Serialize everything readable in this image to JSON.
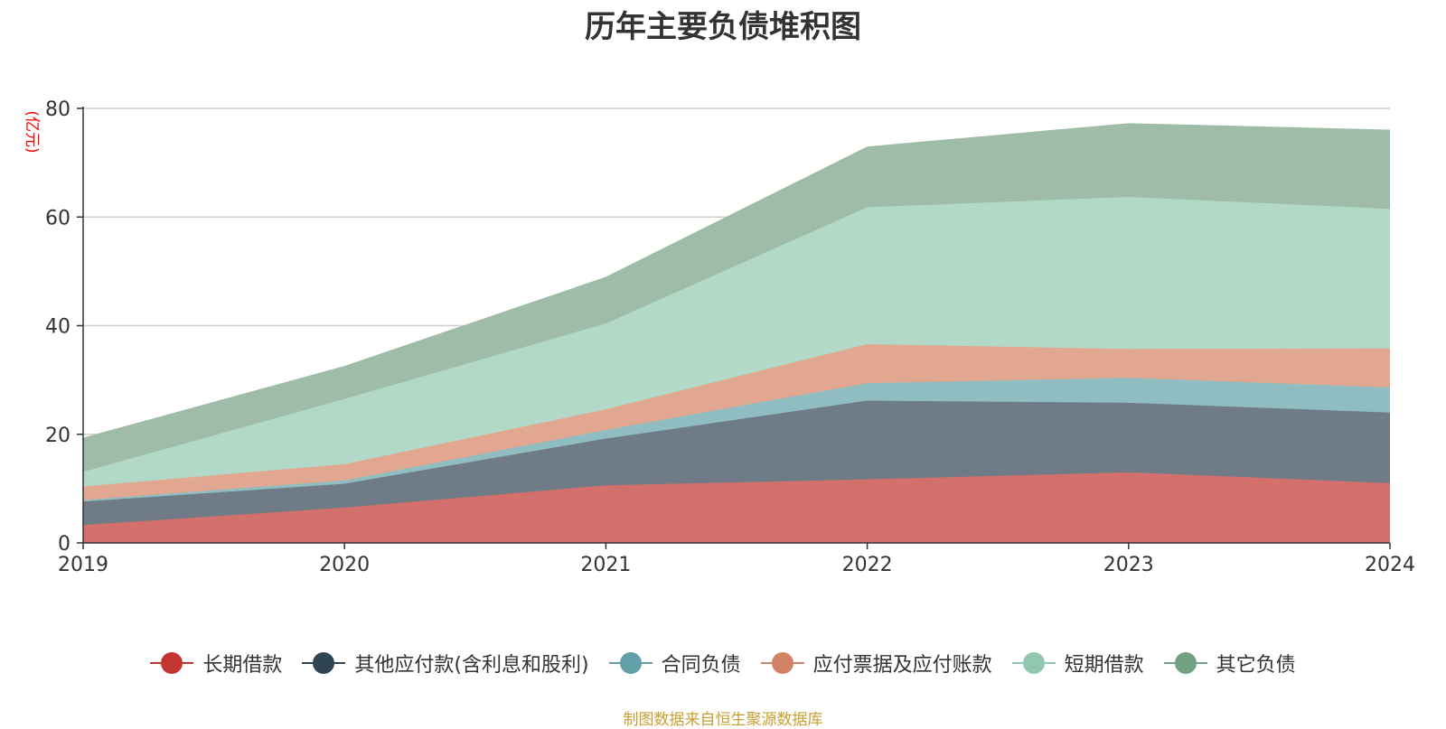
{
  "chart_data": {
    "type": "area",
    "stacked": true,
    "title": "历年主要负债堆积图",
    "unit_label": "(亿元)",
    "x": [
      "2019",
      "2020",
      "2021",
      "2022",
      "2023",
      "2024"
    ],
    "ylim": [
      0,
      80
    ],
    "yticks": [
      0,
      20,
      40,
      60,
      80
    ],
    "grid": true,
    "legend_position": "bottom",
    "series": [
      {
        "name": "长期借款",
        "color": "#c23531",
        "fill": "#d4706c",
        "values": [
          3.3,
          6.5,
          10.6,
          11.7,
          13.0,
          11.0
        ]
      },
      {
        "name": "其他应付款(含利息和股利)",
        "color": "#2f4554",
        "fill": "#6f7c87",
        "values": [
          4.3,
          4.4,
          8.6,
          14.5,
          12.8,
          13.0
        ]
      },
      {
        "name": "合同负债",
        "color": "#61a0a8",
        "fill": "#90bdc2",
        "values": [
          0.3,
          0.6,
          1.6,
          3.2,
          4.6,
          4.6
        ]
      },
      {
        "name": "应付票据及应付账款",
        "color": "#d48265",
        "fill": "#e2a791",
        "values": [
          2.5,
          3.0,
          3.8,
          7.2,
          5.3,
          7.2
        ]
      },
      {
        "name": "短期借款",
        "color": "#91c7ae",
        "fill": "#b2d9c7",
        "values": [
          2.7,
          12.0,
          15.8,
          25.2,
          28.0,
          25.7
        ]
      },
      {
        "name": "其它负债",
        "color": "#749f83",
        "fill": "#9fbca8",
        "values": [
          6.2,
          6.0,
          8.5,
          11.1,
          13.5,
          14.5
        ]
      }
    ],
    "source_note": "制图数据来自恒生聚源数据库"
  }
}
